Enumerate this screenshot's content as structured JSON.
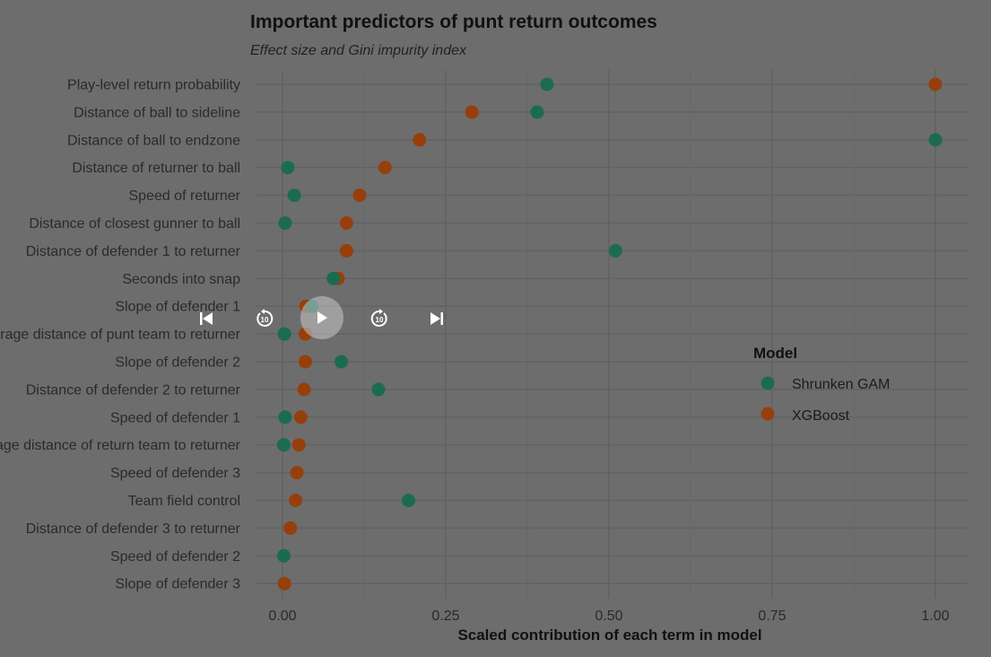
{
  "chart_data": {
    "type": "scatter",
    "title": "Important predictors of punt return outcomes",
    "subtitle": "Effect size and Gini impurity index",
    "xlabel": "Scaled contribution of each term in model",
    "ylabel": "",
    "xlim": [
      -0.04,
      1.05
    ],
    "xticks": [
      0.0,
      0.25,
      0.5,
      0.75,
      1.0
    ],
    "xtick_labels": [
      "0.00",
      "0.25",
      "0.50",
      "0.75",
      "1.00"
    ],
    "grid": true,
    "legend": {
      "title": "Model",
      "placement": "right"
    },
    "categories": [
      "Play-level return probability",
      "Distance of ball to sideline",
      "Distance of ball to endzone",
      "Distance of returner to ball",
      "Speed of returner",
      "Distance of closest gunner to ball",
      "Distance of defender 1 to returner",
      "Seconds into snap",
      "Slope of defender 1",
      "Average distance of punt team to returner",
      "Slope of defender 2",
      "Distance of defender 2 to returner",
      "Speed of defender 1",
      "Average distance of return team to returner",
      "Speed of defender 3",
      "Team field control",
      "Distance of defender 3 to returner",
      "Speed of defender 2",
      "Slope of defender 3"
    ],
    "series": [
      {
        "name": "Shrunken GAM",
        "color": "#1b9e77",
        "values": [
          0.405,
          0.39,
          1.0,
          0.008,
          0.018,
          0.004,
          0.51,
          0.078,
          0.045,
          0.003,
          0.09,
          0.147,
          0.004,
          0.002,
          null,
          0.193,
          null,
          0.002,
          null
        ]
      },
      {
        "name": "XGBoost",
        "color": "#d95f02",
        "values": [
          1.0,
          0.29,
          0.21,
          0.157,
          0.118,
          0.098,
          0.098,
          0.085,
          0.036,
          0.035,
          0.035,
          0.033,
          0.028,
          0.025,
          0.022,
          0.02,
          0.012,
          null,
          0.003
        ]
      }
    ]
  },
  "player": {
    "skip_back_icon": "skip-previous-icon",
    "rewind_icon": "replay-10-icon",
    "rewind_label": "10",
    "play_icon": "play-icon",
    "forward_icon": "forward-10-icon",
    "forward_label": "10",
    "skip_forward_icon": "skip-next-icon"
  }
}
